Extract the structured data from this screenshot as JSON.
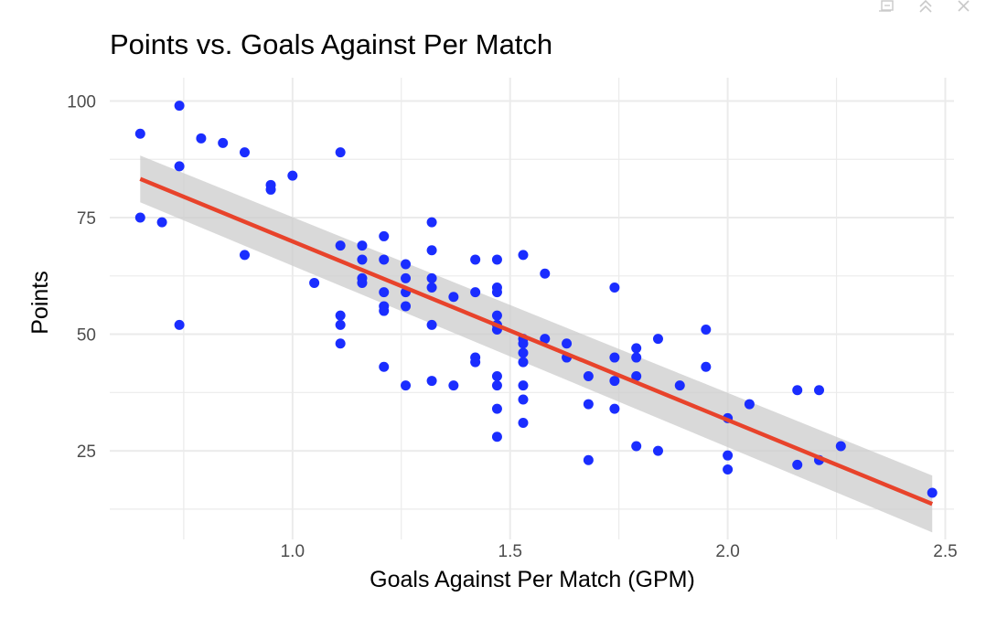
{
  "window": {
    "controls": [
      {
        "name": "export-icon"
      },
      {
        "name": "collapse-icon"
      },
      {
        "name": "close-icon"
      }
    ]
  },
  "colors": {
    "points": "#1a2dff",
    "fit_line": "#e8432b",
    "confidence_band": "#cccccc",
    "grid": "#ebebeb",
    "tick_text": "#4d4d4d"
  },
  "chart_data": {
    "type": "scatter",
    "title": "Points vs. Goals Against Per Match",
    "xlabel": "Goals Against Per Match (GPM)",
    "ylabel": "Points",
    "xlim": [
      0.58,
      2.52
    ],
    "ylim": [
      6,
      105
    ],
    "xticks": [
      1.0,
      1.5,
      2.0,
      2.5
    ],
    "xtick_labels": [
      "1.0",
      "1.5",
      "2.0",
      "2.5"
    ],
    "yticks": [
      25,
      50,
      75,
      100
    ],
    "ytick_labels": [
      "25",
      "50",
      "75",
      "100"
    ],
    "grid": true,
    "legend": "none",
    "series": [
      {
        "x": [
          0.74,
          0.65,
          0.74,
          0.79,
          0.84,
          0.89,
          0.95,
          0.95,
          1.0,
          1.11,
          0.65,
          0.7,
          0.89,
          0.74,
          1.05,
          1.11,
          1.11,
          1.11,
          1.11,
          1.16,
          1.16,
          1.16,
          1.16,
          1.21,
          1.21,
          1.21,
          1.21,
          1.21,
          1.21,
          1.26,
          1.26,
          1.26,
          1.26,
          1.26,
          1.32,
          1.32,
          1.32,
          1.32,
          1.32,
          1.32,
          1.37,
          1.37,
          1.42,
          1.42,
          1.42,
          1.42,
          1.47,
          1.47,
          1.47,
          1.47,
          1.47,
          1.47,
          1.47,
          1.47,
          1.47,
          1.47,
          1.53,
          1.53,
          1.53,
          1.53,
          1.53,
          1.53,
          1.53,
          1.53,
          1.58,
          1.58,
          1.63,
          1.63,
          1.68,
          1.68,
          1.68,
          1.74,
          1.74,
          1.74,
          1.74,
          1.79,
          1.79,
          1.79,
          1.79,
          1.84,
          1.84,
          1.89,
          1.95,
          1.95,
          2.0,
          2.0,
          2.0,
          2.05,
          2.16,
          2.16,
          2.21,
          2.21,
          2.26,
          2.47
        ],
        "y": [
          99,
          93,
          86,
          92,
          91,
          89,
          82,
          81,
          84,
          89,
          75,
          74,
          67,
          52,
          61,
          69,
          54,
          52,
          48,
          69,
          66,
          62,
          61,
          71,
          66,
          59,
          56,
          55,
          43,
          65,
          62,
          59,
          56,
          39,
          74,
          68,
          62,
          60,
          52,
          40,
          58,
          39,
          66,
          59,
          45,
          44,
          66,
          60,
          59,
          54,
          52,
          51,
          41,
          39,
          34,
          28,
          67,
          49,
          48,
          46,
          44,
          39,
          36,
          31,
          63,
          49,
          48,
          45,
          41,
          35,
          23,
          60,
          45,
          40,
          34,
          47,
          45,
          41,
          26,
          49,
          25,
          39,
          51,
          43,
          32,
          24,
          21,
          35,
          38,
          22,
          38,
          23,
          26,
          16
        ]
      }
    ],
    "trend": {
      "type": "linear",
      "x": [
        0.65,
        2.47
      ],
      "y": [
        83.3,
        13.6
      ],
      "band_lower": [
        78.3,
        7.5
      ],
      "band_upper": [
        88.3,
        19.7
      ]
    }
  }
}
